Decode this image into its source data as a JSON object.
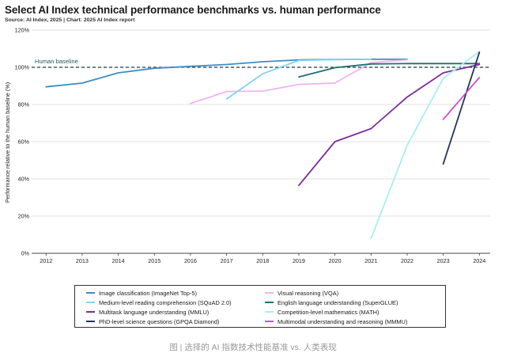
{
  "chart_data": {
    "type": "line",
    "title": "Select AI Index technical performance benchmarks vs. human performance",
    "subtitle": "Source: AI Index, 2025 | Chart: 2025 AI Index report",
    "xlabel": "",
    "ylabel": "Performance relative to the human baseline (%)",
    "ylim": [
      0,
      120
    ],
    "xlim": [
      2011.6,
      2024.3
    ],
    "xticks": [
      "2012",
      "2013",
      "2014",
      "2015",
      "2016",
      "2017",
      "2018",
      "2019",
      "2020",
      "2021",
      "2022",
      "2023",
      "2024"
    ],
    "yticks": [
      "0%",
      "20%",
      "40%",
      "60%",
      "80%",
      "100%",
      "120%"
    ],
    "grid": "horizontal",
    "baseline": {
      "label": "Human baseline",
      "value": 100
    },
    "legend_position": "bottom",
    "series": [
      {
        "name": "Image classification (ImageNet Top-5)",
        "color": "#3a8fc4",
        "x": [
          2012,
          2013,
          2014,
          2015,
          2016,
          2017,
          2018,
          2019,
          2020,
          2021,
          2022
        ],
        "values": [
          89.5,
          91.5,
          97.0,
          99.5,
          100.5,
          101.5,
          103.0,
          104.0,
          104.2,
          104.3,
          104.3
        ]
      },
      {
        "name": "Visual reasoning (VQA)",
        "color": "#f2b3f0",
        "x": [
          2016,
          2017,
          2018,
          2019,
          2020,
          2021,
          2022
        ],
        "values": [
          80.5,
          87.0,
          87.2,
          90.8,
          91.5,
          102.5,
          104.0
        ]
      },
      {
        "name": "Medium-level reading comprehension (SQuAD 2.0)",
        "color": "#7fd3f5",
        "x": [
          2017,
          2018,
          2019,
          2020,
          2021
        ],
        "values": [
          83.0,
          96.5,
          103.7,
          104.1,
          104.3
        ]
      },
      {
        "name": "English language understanding (SuperGLUE)",
        "color": "#1f6f72",
        "x": [
          2019,
          2020,
          2021,
          2022,
          2023,
          2024
        ],
        "values": [
          94.8,
          99.8,
          101.8,
          102.0,
          102.0,
          102.0
        ]
      },
      {
        "name": "Multitask language understanding (MMLU)",
        "color": "#7f2c9c",
        "x": [
          2019,
          2020,
          2021,
          2022,
          2023,
          2024
        ],
        "values": [
          36.5,
          60.0,
          67.0,
          84.0,
          97.0,
          101.5
        ]
      },
      {
        "name": "Competition-level mathematics (MATH)",
        "color": "#a8eef2",
        "x": [
          2021,
          2022,
          2023,
          2024
        ],
        "values": [
          8.0,
          58.0,
          94.0,
          108.5
        ]
      },
      {
        "name": "PhD-level science questions (GPQA Diamond)",
        "color": "#23345c",
        "x": [
          2023,
          2024
        ],
        "values": [
          48.0,
          108.0
        ]
      },
      {
        "name": "Multimodal understanding and reasoning (MMMU)",
        "color": "#cc4fcc",
        "x": [
          2023,
          2024
        ],
        "values": [
          72.0,
          94.5
        ]
      }
    ]
  },
  "caption": "图 | 选择的 AI 指数技术性能基准 vs. 人类表现"
}
